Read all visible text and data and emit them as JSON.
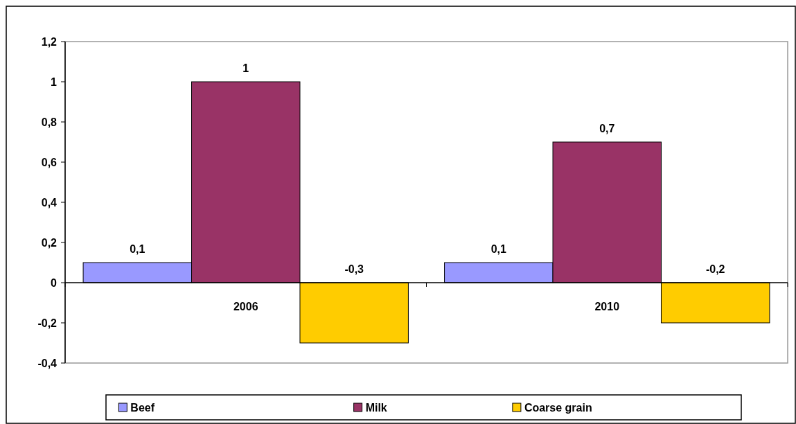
{
  "chart_data": {
    "type": "bar",
    "categories": [
      "2006",
      "2010"
    ],
    "series": [
      {
        "name": "Beef",
        "color": "#9999ff",
        "values": [
          0.1,
          0.1
        ],
        "value_labels": [
          "0,1",
          "0,1"
        ]
      },
      {
        "name": "Milk",
        "color": "#993366",
        "values": [
          1,
          0.7
        ],
        "value_labels": [
          "1",
          "0,7"
        ]
      },
      {
        "name": "Coarse grain",
        "color": "#ffcc00",
        "values": [
          -0.3,
          -0.2
        ],
        "value_labels": [
          "-0,3",
          "-0,2"
        ]
      }
    ],
    "ylim": [
      -0.4,
      1.2
    ],
    "yticks": [
      {
        "value": -0.4,
        "label": "-0,4"
      },
      {
        "value": -0.2,
        "label": "-0,2"
      },
      0,
      {
        "value": 0.2,
        "label": "0,2"
      },
      {
        "value": 0.4,
        "label": "0,4"
      },
      {
        "value": 0.6,
        "label": "0,6"
      },
      {
        "value": 0.8,
        "label": "0,8"
      },
      1,
      {
        "value": 1.2,
        "label": "1,2"
      }
    ],
    "legend": "bottom"
  }
}
